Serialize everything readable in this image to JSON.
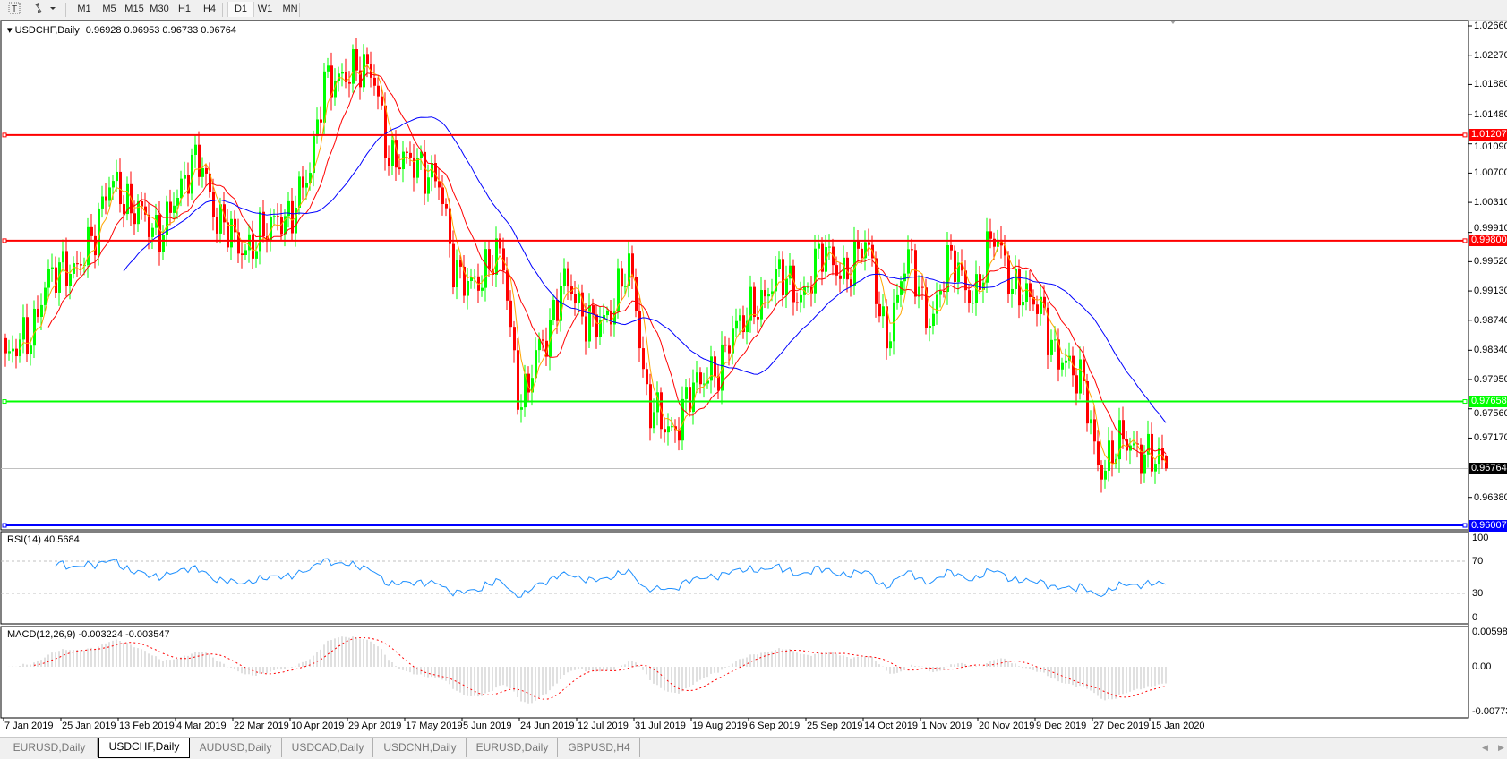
{
  "toolbar": {
    "text_tool_icon": "text-tool-icon",
    "arrows_icon": "arrows-dropdown-icon",
    "timeframes": [
      "M1",
      "M5",
      "M15",
      "M30",
      "H1",
      "H4",
      "D1",
      "W1",
      "MN"
    ],
    "active_timeframe": "D1"
  },
  "header": {
    "symbol": "USDCHF,Daily",
    "ohlc": "0.96928 0.96953 0.96733 0.96764"
  },
  "rsi": {
    "label": "RSI(14) 40.5684",
    "levels": [
      "100",
      "70",
      "30",
      "0"
    ]
  },
  "macd": {
    "label": "MACD(12,26,9) -0.003224 -0.003547",
    "levels": [
      "0.005986",
      "0.00",
      "-0.007737"
    ]
  },
  "price_axis": [
    "1.02660",
    "1.02270",
    "1.01880",
    "1.01480",
    "1.01090",
    "1.00700",
    "1.00310",
    "0.99910",
    "0.99520",
    "0.99130",
    "0.98740",
    "0.98340",
    "0.97950",
    "0.97560",
    "0.97170",
    "0.96380"
  ],
  "horizontal_lines": [
    {
      "price": "1.01207",
      "color": "#ff0000"
    },
    {
      "price": "0.99800",
      "color": "#ff0000"
    },
    {
      "price": "0.97658",
      "color": "#00ff00"
    },
    {
      "price": "0.96007",
      "color": "#0000ff"
    }
  ],
  "current_price": "0.96764",
  "dates": [
    "7 Jan 2019",
    "25 Jan 2019",
    "13 Feb 2019",
    "4 Mar 2019",
    "22 Mar 2019",
    "10 Apr 2019",
    "29 Apr 2019",
    "17 May 2019",
    "5 Jun 2019",
    "24 Jun 2019",
    "12 Jul 2019",
    "31 Jul 2019",
    "19 Aug 2019",
    "6 Sep 2019",
    "25 Sep 2019",
    "14 Oct 2019",
    "1 Nov 2019",
    "20 Nov 2019",
    "9 Dec 2019",
    "27 Dec 2019",
    "15 Jan 2020"
  ],
  "tabs": [
    "EURUSD,Daily",
    "USDCHF,Daily",
    "AUDUSD,Daily",
    "USDCAD,Daily",
    "USDCNH,Daily",
    "EURUSD,Daily",
    "GBPUSD,H4"
  ],
  "active_tab": "USDCHF,Daily",
  "chart_data": {
    "type": "candlestick",
    "symbol": "USDCHF",
    "timeframe": "Daily",
    "last_bar": {
      "open": 0.96928,
      "high": 0.96953,
      "low": 0.96733,
      "close": 0.96764
    },
    "weekly_closes_approx": [
      0.982,
      0.985,
      0.993,
      0.994,
      0.998,
      1.006,
      1.002,
      0.999,
      1.004,
      1.009,
      1.0,
      0.997,
      0.999,
      1.001,
      1.006,
      1.02,
      1.02,
      1.021,
      1.008,
      1.009,
      1.006,
      0.994,
      0.992,
      0.997,
      0.976,
      0.985,
      0.992,
      0.988,
      0.987,
      0.995,
      0.975,
      0.973,
      0.978,
      0.981,
      0.986,
      0.99,
      0.993,
      0.991,
      0.996,
      0.994,
      0.997,
      0.986,
      0.995,
      0.988,
      0.995,
      0.991,
      0.998,
      0.992,
      0.989,
      0.983,
      0.979,
      0.968,
      0.971,
      0.97,
      0.96764
    ],
    "ylim": [
      0.96007,
      1.0266
    ],
    "moving_averages": [
      {
        "color": "#ffa500"
      },
      {
        "color": "#ff0000"
      },
      {
        "color": "#0000ff"
      }
    ],
    "colors": {
      "bull": "#00ff00",
      "bear": "#ff0000",
      "rsi": "#1e90ff",
      "macd_hist": "#c0c0c0",
      "macd_signal": "#ff0000"
    },
    "rsi_period": 14,
    "rsi_ylim": [
      0,
      100
    ],
    "macd_params": [
      12,
      26,
      9
    ],
    "macd_ylim": [
      -0.007737,
      0.005986
    ]
  }
}
